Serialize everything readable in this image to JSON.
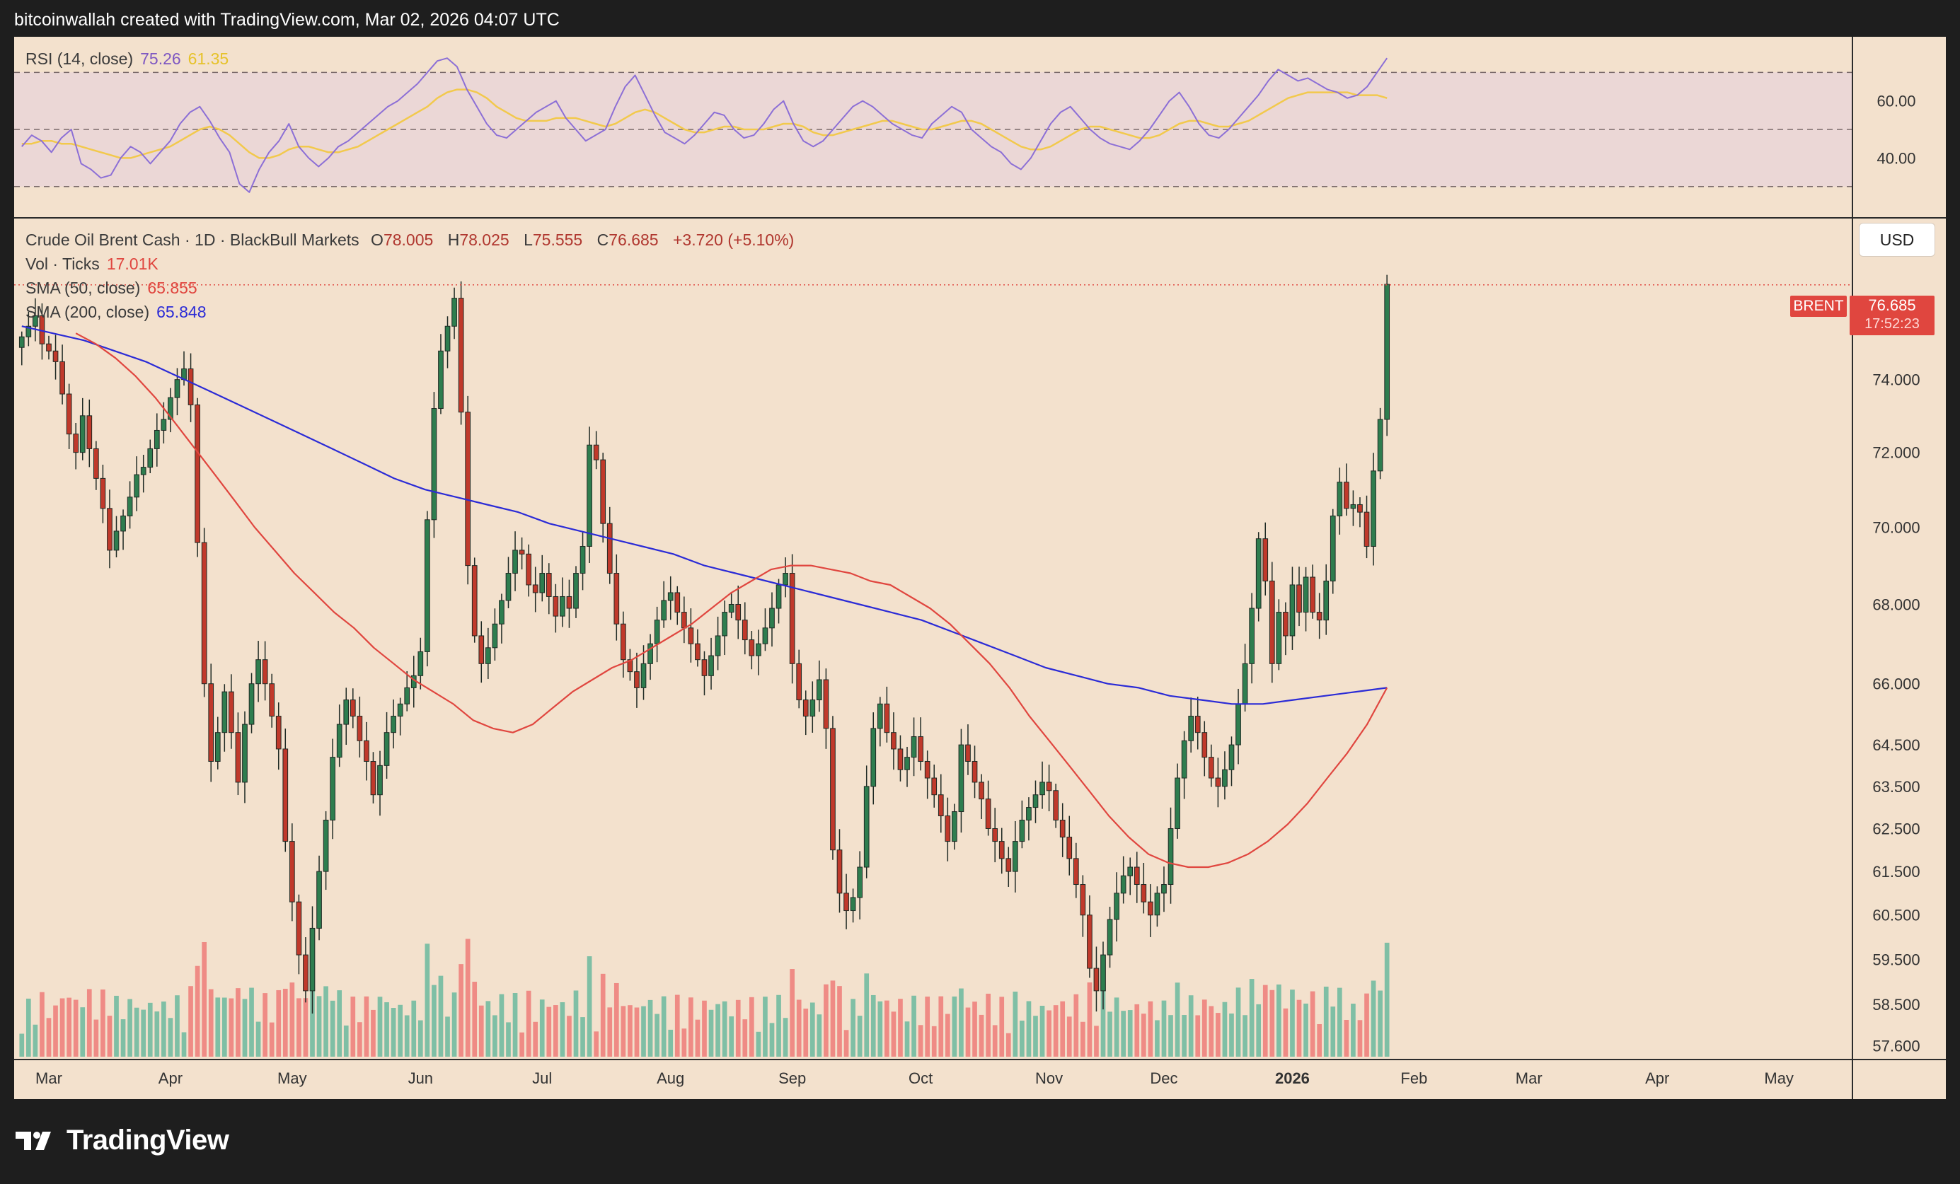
{
  "header": {
    "caption": "bitcoinwallah created with TradingView.com, Mar 02, 2026 04:07 UTC"
  },
  "footer": {
    "brand": "TradingView"
  },
  "colors": {
    "background": "#f3e1cd",
    "up": "#2e7d4f",
    "down": "#c0392b",
    "vol_up": "#7fbfa5",
    "vol_down": "#ef8b85",
    "sma50": "#e0463f",
    "sma200": "#2b2bd6",
    "rsi": "#8c6fd6",
    "rsi_ma": "#f2c94c",
    "rsi_band": "#e8d4d8"
  },
  "currency_button": "USD",
  "last_price": {
    "symbol": "BRENT",
    "price": "76.685",
    "countdown": "17:52:23"
  },
  "chart_data": [
    {
      "type": "line",
      "panel": "RSI",
      "legend": {
        "label": "RSI (14, close)",
        "rsi_value": "75.26",
        "ma_value": "61.35"
      },
      "ylim": [
        22,
        80
      ],
      "yticks": [
        "60.00",
        "40.00"
      ],
      "bands": [
        70,
        50,
        30
      ],
      "series": [
        {
          "name": "RSI",
          "values": [
            44,
            48,
            46,
            42,
            47,
            50,
            38,
            36,
            33,
            34,
            40,
            44,
            42,
            38,
            42,
            46,
            52,
            56,
            58,
            53,
            47,
            42,
            31,
            28,
            36,
            42,
            46,
            52,
            44,
            40,
            37,
            40,
            44,
            46,
            49,
            52,
            55,
            58,
            60,
            63,
            66,
            70,
            74,
            75,
            72,
            64,
            58,
            52,
            48,
            47,
            50,
            53,
            56,
            58,
            60,
            54,
            50,
            46,
            48,
            50,
            58,
            65,
            69,
            62,
            55,
            49,
            47,
            45,
            48,
            52,
            56,
            55,
            50,
            47,
            48,
            52,
            57,
            60,
            52,
            46,
            44,
            46,
            50,
            54,
            58,
            60,
            58,
            55,
            52,
            50,
            48,
            47,
            52,
            55,
            58,
            56,
            50,
            47,
            44,
            42,
            38,
            36,
            40,
            46,
            52,
            56,
            58,
            54,
            50,
            47,
            45,
            44,
            43,
            46,
            50,
            55,
            60,
            63,
            58,
            52,
            48,
            47,
            50,
            54,
            58,
            62,
            67,
            71,
            69,
            67,
            68,
            66,
            64,
            63,
            61,
            62,
            65,
            70,
            75
          ]
        },
        {
          "name": "RSI MA",
          "values": [
            45,
            45,
            46,
            46,
            45,
            45,
            44,
            43,
            42,
            41,
            40,
            40,
            41,
            42,
            43,
            44,
            46,
            48,
            50,
            51,
            50,
            48,
            45,
            42,
            40,
            40,
            41,
            43,
            44,
            44,
            43,
            42,
            42,
            43,
            44,
            46,
            48,
            50,
            52,
            54,
            56,
            58,
            61,
            63,
            64,
            64,
            63,
            61,
            58,
            56,
            54,
            53,
            53,
            53,
            54,
            54,
            54,
            53,
            52,
            51,
            52,
            54,
            56,
            57,
            56,
            54,
            52,
            50,
            49,
            49,
            50,
            51,
            51,
            50,
            50,
            50,
            51,
            52,
            52,
            51,
            49,
            48,
            48,
            49,
            50,
            51,
            52,
            53,
            53,
            52,
            51,
            50,
            50,
            51,
            52,
            53,
            53,
            52,
            50,
            48,
            46,
            44,
            43,
            43,
            44,
            46,
            48,
            50,
            51,
            51,
            50,
            49,
            48,
            47,
            47,
            48,
            50,
            52,
            53,
            53,
            52,
            51,
            51,
            52,
            53,
            55,
            57,
            59,
            61,
            62,
            63,
            63,
            63,
            63,
            63,
            62,
            62,
            62,
            61
          ]
        }
      ]
    },
    {
      "type": "candlestick",
      "panel": "Price",
      "legend": {
        "title": "Crude Oil Brent Cash · 1D · BlackBull Markets",
        "open_label": "O",
        "open": "78.005",
        "high_label": "H",
        "high": "78.025",
        "low_label": "L",
        "low": "75.555",
        "close_label": "C",
        "close": "76.685",
        "change": "+3.720 (+5.10%)",
        "vol_label": "Vol · Ticks",
        "vol_value": "17.01K",
        "sma50_label": "SMA (50, close)",
        "sma50_value": "65.855",
        "sma200_label": "SMA (200, close)",
        "sma200_value": "65.848"
      },
      "ylim": [
        57.3,
        78.6
      ],
      "yticks": [
        "74.000",
        "72.000",
        "70.000",
        "68.000",
        "66.000",
        "64.500",
        "63.500",
        "62.500",
        "61.500",
        "60.500",
        "59.500",
        "58.500",
        "57.600"
      ],
      "xticks": [
        "Mar",
        "Apr",
        "May",
        "Jun",
        "Jul",
        "Aug",
        "Sep",
        "Oct",
        "Nov",
        "Dec",
        "2026",
        "Feb",
        "Mar",
        "Apr",
        "May"
      ],
      "xtick_positions": [
        4,
        22,
        40,
        59,
        77,
        96,
        114,
        133,
        152,
        169,
        188,
        206,
        223,
        242,
        260
      ],
      "close": [
        75.2,
        75.5,
        75.8,
        75.0,
        74.8,
        74.5,
        73.6,
        72.5,
        72.0,
        73.0,
        72.1,
        71.3,
        70.5,
        69.4,
        69.9,
        70.3,
        70.8,
        71.4,
        71.6,
        72.1,
        72.6,
        72.9,
        73.5,
        74.0,
        74.3,
        73.3,
        69.6,
        66.0,
        64.1,
        64.8,
        65.8,
        64.8,
        63.6,
        65.0,
        66.0,
        66.6,
        66.0,
        65.2,
        64.4,
        62.2,
        60.8,
        59.6,
        58.8,
        60.2,
        61.5,
        62.7,
        64.2,
        65.0,
        65.6,
        65.2,
        64.6,
        64.1,
        63.3,
        64.0,
        64.8,
        65.2,
        65.5,
        65.9,
        66.2,
        66.8,
        70.2,
        73.2,
        74.8,
        75.5,
        76.3,
        73.1,
        69.0,
        67.2,
        66.5,
        66.9,
        67.5,
        68.1,
        68.8,
        69.4,
        69.3,
        68.5,
        68.3,
        68.8,
        68.2,
        67.7,
        68.2,
        67.9,
        68.8,
        69.5,
        72.2,
        71.8,
        70.1,
        68.8,
        67.5,
        66.6,
        66.3,
        65.9,
        66.5,
        67.0,
        67.6,
        68.1,
        68.3,
        67.8,
        67.4,
        67.0,
        66.6,
        66.2,
        66.7,
        67.2,
        67.8,
        68.0,
        67.6,
        67.1,
        66.7,
        67.0,
        67.4,
        67.9,
        68.5,
        68.8,
        66.5,
        65.6,
        65.2,
        65.6,
        66.1,
        64.9,
        62.0,
        61.0,
        60.6,
        60.9,
        61.6,
        63.5,
        64.9,
        65.5,
        64.8,
        64.4,
        63.9,
        64.2,
        64.7,
        64.1,
        63.7,
        63.3,
        62.8,
        62.2,
        62.9,
        64.5,
        64.1,
        63.6,
        63.2,
        62.5,
        62.2,
        61.8,
        61.5,
        62.2,
        62.7,
        63.0,
        63.3,
        63.6,
        63.4,
        62.7,
        62.3,
        61.8,
        61.2,
        60.5,
        59.3,
        58.8,
        59.6,
        60.4,
        61.0,
        61.4,
        61.6,
        61.2,
        60.8,
        60.5,
        61.0,
        61.2,
        62.5,
        63.7,
        64.6,
        65.2,
        64.8,
        64.2,
        63.7,
        63.5,
        63.9,
        64.5,
        65.5,
        66.5,
        67.9,
        69.7,
        68.6,
        66.5,
        67.8,
        67.2,
        68.5,
        67.8,
        68.7,
        67.8,
        67.6,
        68.6,
        70.3,
        71.2,
        70.5,
        70.6,
        70.4,
        69.5,
        71.5,
        72.9,
        76.7
      ],
      "volume_note": "relative tick volume per bar",
      "series": [
        {
          "name": "SMA (50, close)",
          "from_index": 8,
          "values": [
            75.3,
            75.0,
            74.6,
            74.1,
            73.5,
            72.8,
            72.1,
            71.4,
            70.7,
            70.0,
            69.4,
            68.8,
            68.3,
            67.8,
            67.4,
            66.9,
            66.5,
            66.1,
            65.8,
            65.5,
            65.1,
            64.9,
            64.8,
            65.0,
            65.4,
            65.8,
            66.1,
            66.4,
            66.6,
            66.9,
            67.2,
            67.5,
            67.9,
            68.3,
            68.6,
            68.9,
            69.0,
            69.0,
            68.9,
            68.8,
            68.6,
            68.5,
            68.2,
            67.9,
            67.5,
            67.0,
            66.5,
            65.9,
            65.2,
            64.6,
            64.0,
            63.4,
            62.8,
            62.3,
            61.9,
            61.7,
            61.6,
            61.6,
            61.7,
            61.9,
            62.2,
            62.6,
            63.1,
            63.7,
            64.3,
            65.0,
            65.9
          ]
        },
        {
          "name": "SMA (200, close)",
          "values": [
            75.5,
            75.3,
            75.1,
            74.8,
            74.5,
            74.1,
            73.7,
            73.3,
            72.9,
            72.5,
            72.1,
            71.7,
            71.3,
            71.0,
            70.8,
            70.6,
            70.4,
            70.1,
            69.9,
            69.7,
            69.5,
            69.3,
            69.0,
            68.8,
            68.6,
            68.4,
            68.2,
            68.0,
            67.8,
            67.6,
            67.3,
            67.0,
            66.7,
            66.4,
            66.2,
            66.0,
            65.9,
            65.7,
            65.6,
            65.5,
            65.5,
            65.6,
            65.7,
            65.8,
            65.9
          ]
        }
      ]
    }
  ]
}
